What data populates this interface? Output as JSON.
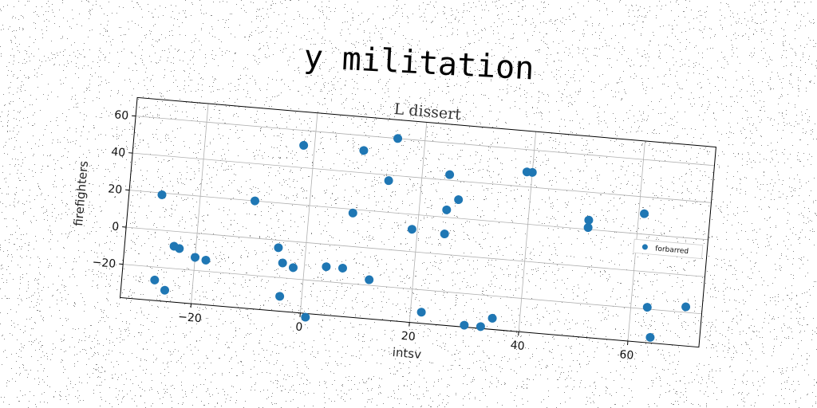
{
  "chart_data": {
    "type": "scatter",
    "title": "y militation",
    "subtitle": "L dissert",
    "xlabel": "intsv",
    "ylabel": "firefighters",
    "xlim": [
      -33,
      73
    ],
    "ylim": [
      -38,
      70
    ],
    "xticks": [
      -20,
      0,
      20,
      40,
      60
    ],
    "yticks": [
      -20,
      0,
      20,
      40,
      60
    ],
    "xtick_labels": [
      "−20",
      "0",
      "20",
      "40",
      "60"
    ],
    "ytick_labels": [
      "−20",
      "0",
      "20",
      "40",
      "60"
    ],
    "grid": true,
    "legend_position": "right",
    "colors": {
      "series": "#1f77b4",
      "grid": "#b0b0b0",
      "frame": "#000000"
    },
    "series": [
      {
        "name": "forbarred",
        "points": [
          [
            -27,
            19
          ],
          [
            -27,
            -27
          ],
          [
            -25,
            -32
          ],
          [
            -24,
            -8
          ],
          [
            -23,
            -9
          ],
          [
            -20,
            -13
          ],
          [
            -18,
            -14
          ],
          [
            -10,
            20
          ],
          [
            -5,
            -4
          ],
          [
            -4,
            -12
          ],
          [
            -4,
            -30
          ],
          [
            -2,
            52
          ],
          [
            -2,
            -14
          ],
          [
            1,
            -40
          ],
          [
            4,
            -12
          ],
          [
            7,
            -12
          ],
          [
            8,
            18
          ],
          [
            9,
            52
          ],
          [
            12,
            -17
          ],
          [
            14,
            37
          ],
          [
            15,
            60
          ],
          [
            19,
            12
          ],
          [
            22,
            -32
          ],
          [
            25,
            24
          ],
          [
            25,
            43
          ],
          [
            25,
            11
          ],
          [
            27,
            30
          ],
          [
            30,
            -37
          ],
          [
            33,
            -37
          ],
          [
            35,
            -32
          ],
          [
            39,
            48
          ],
          [
            40,
            48
          ],
          [
            51,
            25
          ],
          [
            51,
            21
          ],
          [
            61,
            31
          ],
          [
            63,
            -19
          ],
          [
            64,
            -35
          ],
          [
            70,
            -17
          ]
        ]
      }
    ]
  }
}
